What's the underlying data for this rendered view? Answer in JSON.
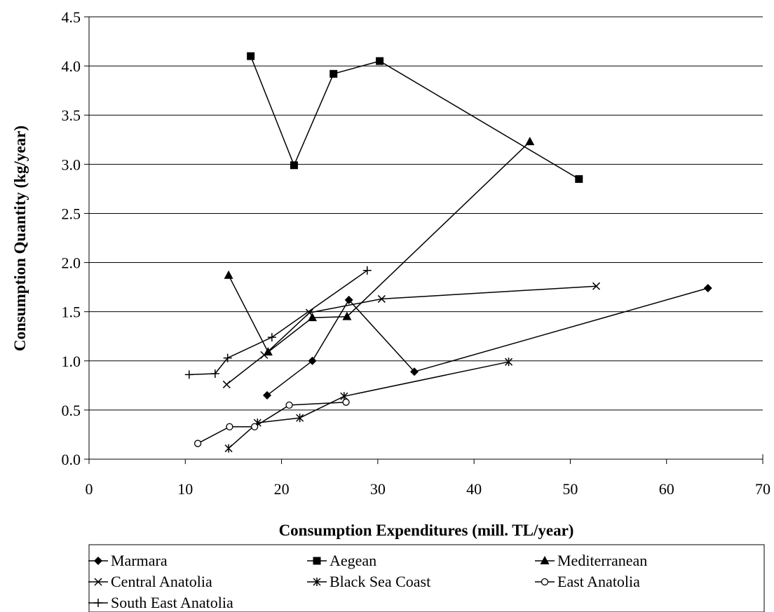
{
  "chart_data": {
    "type": "scatter",
    "title": "",
    "xlabel": "Consumption Expenditures (mill. TL/year)",
    "ylabel": "Consumption Quantity (kg/year)",
    "xlim": [
      0,
      70
    ],
    "ylim": [
      0,
      4.5
    ],
    "x_ticks": [
      "0",
      "10",
      "20",
      "30",
      "40",
      "50",
      "60",
      "70"
    ],
    "y_ticks": [
      "0.0",
      "0.5",
      "1.0",
      "1.5",
      "2.0",
      "2.5",
      "3.0",
      "3.5",
      "4.0",
      "4.5"
    ],
    "grid": "horizontal",
    "legend_position": "bottom",
    "lines_connect_points": true,
    "series": [
      {
        "name": "Marmara",
        "marker": "diamond",
        "color": "#000000",
        "x": [
          18.5,
          23.2,
          27.0,
          33.8,
          64.3
        ],
        "y": [
          0.65,
          1.0,
          1.62,
          0.89,
          1.74
        ]
      },
      {
        "name": "Aegean",
        "marker": "square",
        "color": "#000000",
        "x": [
          16.8,
          21.3,
          25.4,
          30.2,
          50.9
        ],
        "y": [
          4.1,
          2.99,
          3.92,
          4.05,
          2.85
        ]
      },
      {
        "name": "Mediterranean",
        "marker": "triangle",
        "color": "#000000",
        "x": [
          14.5,
          18.6,
          23.2,
          26.8,
          45.8
        ],
        "y": [
          1.87,
          1.09,
          1.44,
          1.45,
          3.23
        ]
      },
      {
        "name": "Central Anatolia",
        "marker": "x",
        "color": "#000000",
        "x": [
          14.3,
          18.2,
          22.9,
          30.4,
          52.7
        ],
        "y": [
          0.76,
          1.06,
          1.49,
          1.63,
          1.76
        ]
      },
      {
        "name": "Black Sea Coast",
        "marker": "star",
        "color": "#000000",
        "x": [
          14.5,
          17.5,
          21.9,
          26.5,
          43.6
        ],
        "y": [
          0.11,
          0.37,
          0.42,
          0.64,
          0.99
        ]
      },
      {
        "name": "East Anatolia",
        "marker": "circle",
        "color": "#000000",
        "x": [
          11.3,
          14.6,
          17.2,
          20.8,
          26.7
        ],
        "y": [
          0.16,
          0.33,
          0.33,
          0.55,
          0.58
        ]
      },
      {
        "name": "South East Anatolia",
        "marker": "plus",
        "color": "#000000",
        "x": [
          10.4,
          13.1,
          14.4,
          19.0,
          28.9
        ],
        "y": [
          0.86,
          0.87,
          1.03,
          1.24,
          1.92
        ]
      }
    ]
  }
}
